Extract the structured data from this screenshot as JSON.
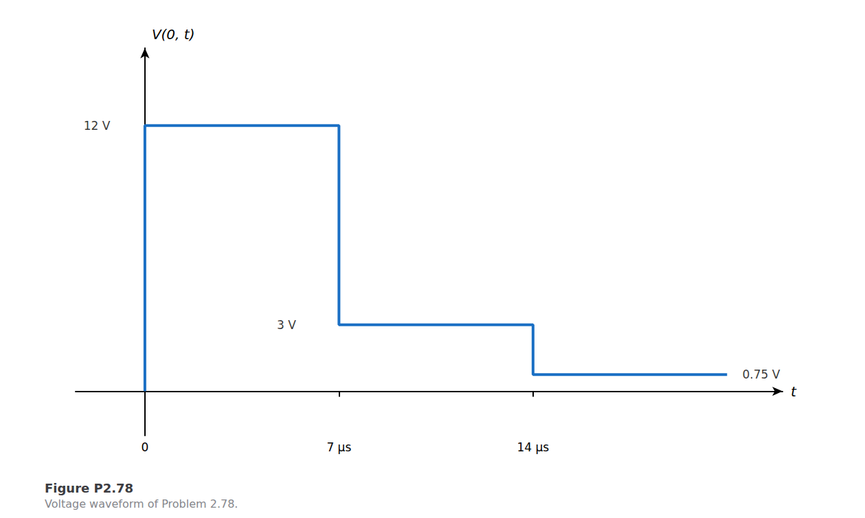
{
  "chart_data": {
    "type": "line",
    "title": "Figure P2.78",
    "subtitle": "Voltage waveform of Problem 2.78.",
    "x_label": "t",
    "y_label": "V(0, t)",
    "x": [
      0,
      0,
      7,
      7,
      14,
      14,
      21
    ],
    "values": [
      0,
      12,
      12,
      3,
      3,
      0.75,
      0.75
    ],
    "color": "#1a6fc4",
    "xlim": [
      -2.5,
      23
    ],
    "ylim": [
      -2.0,
      15.5
    ],
    "xticks": [
      0,
      {
        "value": 7,
        "label": "7 μs"
      },
      {
        "value": 14,
        "label": "14 μs"
      }
    ],
    "tick_labels": "x",
    "grid": false,
    "annotations": [
      {
        "text": "12 V",
        "x": -1.2,
        "y": 12.0
      },
      {
        "text": "3 V",
        "x": 5.5,
        "y": 3.0
      },
      {
        "text": "0.75 V",
        "x": 21.5,
        "y": 0.75
      }
    ]
  }
}
